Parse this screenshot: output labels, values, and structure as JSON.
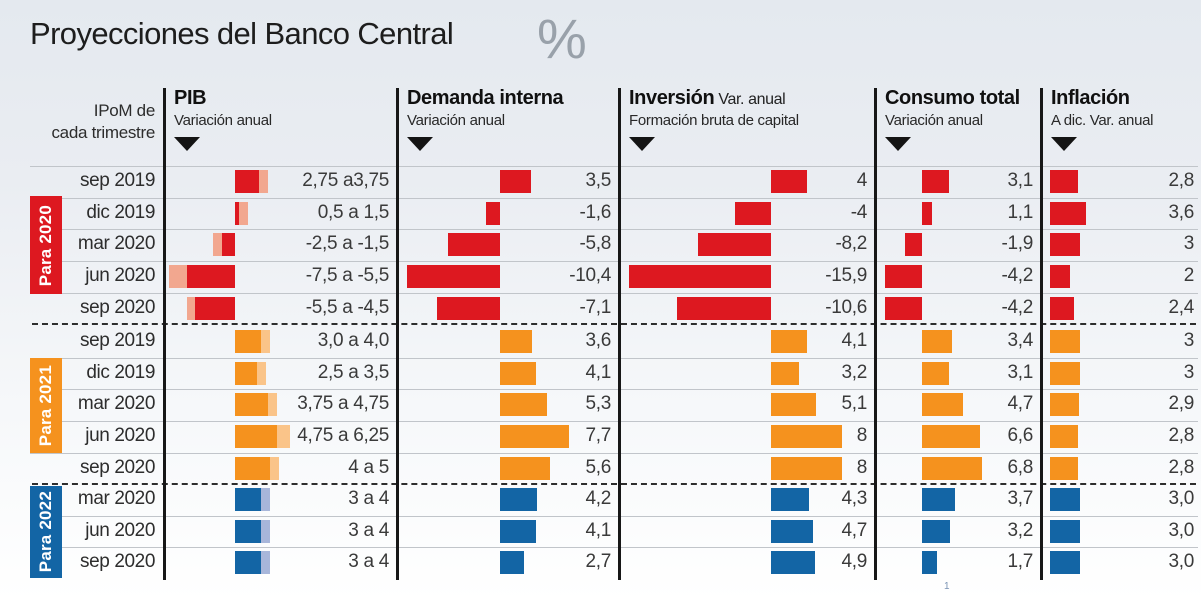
{
  "title": "Proyecciones del Banco Central",
  "unit_symbol": "%",
  "row_header": {
    "line1": "IPoM de",
    "line2": "cada trimestre"
  },
  "footnote_mark": "1",
  "columns": [
    {
      "id": "pib",
      "title": "PIB",
      "title_suffix": "",
      "subtitle": "Variación anual"
    },
    {
      "id": "demanda",
      "title": "Demanda interna",
      "title_suffix": "",
      "subtitle": "Variación anual"
    },
    {
      "id": "inversion",
      "title": "Inversión",
      "title_suffix": " Var. anual",
      "subtitle": "Formación bruta de capital"
    },
    {
      "id": "consumo",
      "title": "Consumo total",
      "title_suffix": "",
      "subtitle": "Variación anual"
    },
    {
      "id": "inflacion",
      "title": "Inflación",
      "title_suffix": "",
      "subtitle": "A dic. Var. anual"
    }
  ],
  "groups": [
    {
      "label": "Para 2020",
      "color": "#dd1820",
      "light_color": "#f2a78f",
      "rows": [
        {
          "quarter": "sep 2019",
          "pib_label": "2,75 a3,75",
          "pib_range": [
            2.75,
            3.75
          ],
          "values": {
            "demanda": 3.5,
            "inversion": 4,
            "consumo": 3.1,
            "inflacion": 2.8
          },
          "labels": {
            "demanda": "3,5",
            "inversion": "4",
            "consumo": "3,1",
            "inflacion": "2,8"
          }
        },
        {
          "quarter": "dic 2019",
          "pib_label": "0,5 a 1,5",
          "pib_range": [
            0.5,
            1.5
          ],
          "values": {
            "demanda": -1.6,
            "inversion": -4,
            "consumo": 1.1,
            "inflacion": 3.6
          },
          "labels": {
            "demanda": "-1,6",
            "inversion": "-4",
            "consumo": "1,1",
            "inflacion": "3,6"
          }
        },
        {
          "quarter": "mar 2020",
          "pib_label": "-2,5 a -1,5",
          "pib_range": [
            -2.5,
            -1.5
          ],
          "values": {
            "demanda": -5.8,
            "inversion": -8.2,
            "consumo": -1.9,
            "inflacion": 3
          },
          "labels": {
            "demanda": "-5,8",
            "inversion": "-8,2",
            "consumo": "-1,9",
            "inflacion": "3"
          }
        },
        {
          "quarter": "jun 2020",
          "pib_label": "-7,5 a -5,5",
          "pib_range": [
            -7.5,
            -5.5
          ],
          "values": {
            "demanda": -10.4,
            "inversion": -15.9,
            "consumo": -4.2,
            "inflacion": 2
          },
          "labels": {
            "demanda": "-10,4",
            "inversion": "-15,9",
            "consumo": "-4,2",
            "inflacion": "2"
          }
        },
        {
          "quarter": "sep 2020",
          "pib_label": "-5,5 a -4,5",
          "pib_range": [
            -5.5,
            -4.5
          ],
          "values": {
            "demanda": -7.1,
            "inversion": -10.6,
            "consumo": -4.2,
            "inflacion": 2.4
          },
          "labels": {
            "demanda": "-7,1",
            "inversion": "-10,6",
            "consumo": "-4,2",
            "inflacion": "2,4"
          }
        }
      ]
    },
    {
      "label": "Para 2021",
      "color": "#f5921e",
      "light_color": "#fac489",
      "rows": [
        {
          "quarter": "sep 2019",
          "pib_label": "3,0 a 4,0",
          "pib_range": [
            3.0,
            4.0
          ],
          "values": {
            "demanda": 3.6,
            "inversion": 4.1,
            "consumo": 3.4,
            "inflacion": 3
          },
          "labels": {
            "demanda": "3,6",
            "inversion": "4,1",
            "consumo": "3,4",
            "inflacion": "3"
          }
        },
        {
          "quarter": "dic 2019",
          "pib_label": "2,5 a 3,5",
          "pib_range": [
            2.5,
            3.5
          ],
          "values": {
            "demanda": 4.1,
            "inversion": 3.2,
            "consumo": 3.1,
            "inflacion": 3
          },
          "labels": {
            "demanda": "4,1",
            "inversion": "3,2",
            "consumo": "3,1",
            "inflacion": "3"
          }
        },
        {
          "quarter": "mar 2020",
          "pib_label": "3,75 a 4,75",
          "pib_range": [
            3.75,
            4.75
          ],
          "values": {
            "demanda": 5.3,
            "inversion": 5.1,
            "consumo": 4.7,
            "inflacion": 2.9
          },
          "labels": {
            "demanda": "5,3",
            "inversion": "5,1",
            "consumo": "4,7",
            "inflacion": "2,9"
          }
        },
        {
          "quarter": "jun 2020",
          "pib_label": "4,75 a 6,25",
          "pib_range": [
            4.75,
            6.25
          ],
          "values": {
            "demanda": 7.7,
            "inversion": 8,
            "consumo": 6.6,
            "inflacion": 2.8
          },
          "labels": {
            "demanda": "7,7",
            "inversion": "8",
            "consumo": "6,6",
            "inflacion": "2,8"
          }
        },
        {
          "quarter": "sep 2020",
          "pib_label": "4 a 5",
          "pib_range": [
            4,
            5
          ],
          "values": {
            "demanda": 5.6,
            "inversion": 8,
            "consumo": 6.8,
            "inflacion": 2.8
          },
          "labels": {
            "demanda": "5,6",
            "inversion": "8",
            "consumo": "6,8",
            "inflacion": "2,8"
          }
        }
      ]
    },
    {
      "label": "Para 2022",
      "color": "#1365a5",
      "light_color": "#a8b6da",
      "rows": [
        {
          "quarter": "mar 2020",
          "pib_label": "3 a 4",
          "pib_range": [
            3,
            4
          ],
          "values": {
            "demanda": 4.2,
            "inversion": 4.3,
            "consumo": 3.7,
            "inflacion": 3.0
          },
          "labels": {
            "demanda": "4,2",
            "inversion": "4,3",
            "consumo": "3,7",
            "inflacion": "3,0"
          }
        },
        {
          "quarter": "jun 2020",
          "pib_label": "3 a 4",
          "pib_range": [
            3,
            4
          ],
          "values": {
            "demanda": 4.1,
            "inversion": 4.7,
            "consumo": 3.2,
            "inflacion": 3.0
          },
          "labels": {
            "demanda": "4,1",
            "inversion": "4,7",
            "consumo": "3,2",
            "inflacion": "3,0"
          }
        },
        {
          "quarter": "sep 2020",
          "pib_label": "3 a 4",
          "pib_range": [
            3,
            4
          ],
          "values": {
            "demanda": 2.7,
            "inversion": 4.9,
            "consumo": 1.7,
            "inflacion": 3.0
          },
          "labels": {
            "demanda": "2,7",
            "inversion": "4,9",
            "consumo": "1,7",
            "inflacion": "3,0"
          }
        }
      ]
    }
  ],
  "chart_data": {
    "type": "bar",
    "title": "Proyecciones del Banco Central",
    "unit": "%",
    "row_axis": "IPoM de cada trimestre",
    "legend_colors": {
      "Para 2020": "#dd1820",
      "Para 2021": "#f5921e",
      "Para 2022": "#1365a5"
    },
    "metrics": [
      "PIB Variación anual (rango)",
      "Demanda interna Variación anual",
      "Inversión Var. anual Formación bruta de capital",
      "Consumo total Variación anual",
      "Inflación A dic. Var. anual"
    ],
    "groups": [
      {
        "target_year": "Para 2020",
        "quarters": [
          "sep 2019",
          "dic 2019",
          "mar 2020",
          "jun 2020",
          "sep 2020"
        ],
        "pib_range": [
          [
            2.75,
            3.75
          ],
          [
            0.5,
            1.5
          ],
          [
            -2.5,
            -1.5
          ],
          [
            -7.5,
            -5.5
          ],
          [
            -5.5,
            -4.5
          ]
        ],
        "demanda_interna": [
          3.5,
          -1.6,
          -5.8,
          -10.4,
          -7.1
        ],
        "inversion": [
          4,
          -4,
          -8.2,
          -15.9,
          -10.6
        ],
        "consumo_total": [
          3.1,
          1.1,
          -1.9,
          -4.2,
          -4.2
        ],
        "inflacion": [
          2.8,
          3.6,
          3,
          2,
          2.4
        ]
      },
      {
        "target_year": "Para 2021",
        "quarters": [
          "sep 2019",
          "dic 2019",
          "mar 2020",
          "jun 2020",
          "sep 2020"
        ],
        "pib_range": [
          [
            3.0,
            4.0
          ],
          [
            2.5,
            3.5
          ],
          [
            3.75,
            4.75
          ],
          [
            4.75,
            6.25
          ],
          [
            4,
            5
          ]
        ],
        "demanda_interna": [
          3.6,
          4.1,
          5.3,
          7.7,
          5.6
        ],
        "inversion": [
          4.1,
          3.2,
          5.1,
          8,
          8
        ],
        "consumo_total": [
          3.4,
          3.1,
          4.7,
          6.6,
          6.8
        ],
        "inflacion": [
          3,
          3,
          2.9,
          2.8,
          2.8
        ]
      },
      {
        "target_year": "Para 2022",
        "quarters": [
          "mar 2020",
          "jun 2020",
          "sep 2020"
        ],
        "pib_range": [
          [
            3,
            4
          ],
          [
            3,
            4
          ],
          [
            3,
            4
          ]
        ],
        "demanda_interna": [
          4.2,
          4.1,
          2.7
        ],
        "inversion": [
          4.3,
          4.7,
          4.9
        ],
        "consumo_total": [
          3.7,
          3.2,
          1.7
        ],
        "inflacion": [
          3.0,
          3.0,
          3.0
        ]
      }
    ]
  }
}
